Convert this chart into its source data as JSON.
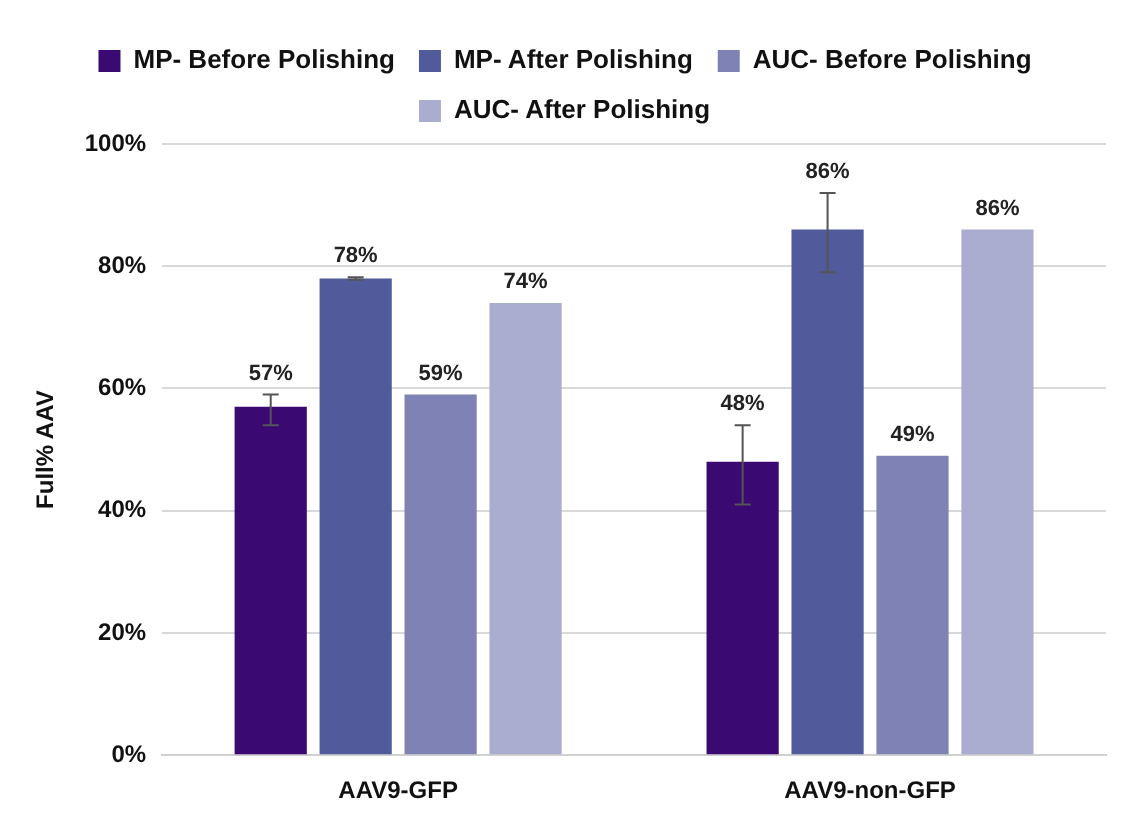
{
  "chart_data": {
    "type": "bar",
    "ylabel": "Full% AAV",
    "categories": [
      "AAV9-GFP",
      "AAV9-non-GFP"
    ],
    "series": [
      {
        "name": "MP- Before Polishing",
        "color": "#3a0a72",
        "values": [
          57,
          48
        ],
        "value_labels": [
          "57%",
          "48%"
        ],
        "errors": [
          [
            54,
            59
          ],
          [
            41,
            54
          ]
        ]
      },
      {
        "name": "MP- After Polishing",
        "color": "#515b9c",
        "values": [
          78,
          86
        ],
        "value_labels": [
          "78%",
          "86%"
        ],
        "errors": [
          [
            77.8,
            78.2
          ],
          [
            79,
            92
          ]
        ]
      },
      {
        "name": "AUC- Before Polishing",
        "color": "#7e82b4",
        "values": [
          59,
          49
        ],
        "value_labels": [
          "59%",
          "49%"
        ]
      },
      {
        "name": "AUC- After Polishing",
        "color": "#abadd0",
        "values": [
          74,
          86
        ],
        "value_labels": [
          "74%",
          "86%"
        ]
      }
    ],
    "ylim": [
      0,
      100
    ],
    "yticks": [
      {
        "value": 0,
        "label": "0%"
      },
      {
        "value": 20,
        "label": "20%"
      },
      {
        "value": 40,
        "label": "40%"
      },
      {
        "value": 60,
        "label": "60%"
      },
      {
        "value": 80,
        "label": "80%"
      },
      {
        "value": 100,
        "label": "100%"
      }
    ],
    "grid": "y",
    "legend": "top"
  }
}
